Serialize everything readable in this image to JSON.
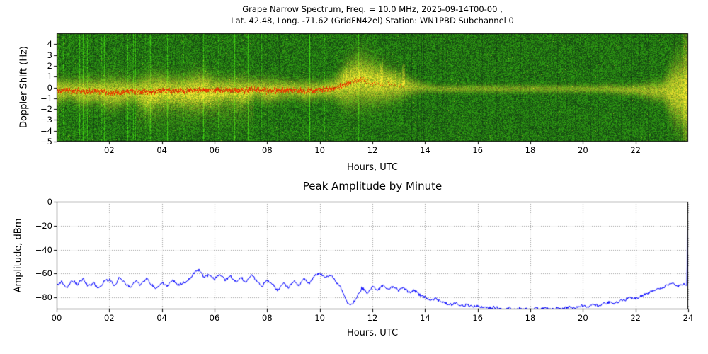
{
  "figure": {
    "background": "#ffffff",
    "top_chart": {
      "title_line1": "Grape Narrow Spectrum, Freq. = 10.0 MHz, 2025-09-14T00-00 ,",
      "title_line2": "Lat.  42.48, Long. -71.62 (GridFN42el) Station: WN1PBD Subchannel 0",
      "ylabel": "Doppler Shift (Hz)",
      "xlabel": "Hours, UTC"
    },
    "bottom_chart": {
      "title": "Peak Amplitude by Minute",
      "ylabel": "Amplitude, dBm",
      "xlabel": "Hours, UTC"
    }
  },
  "chart_data": [
    {
      "type": "heatmap",
      "title": "Grape Narrow Spectrum, Freq. = 10.0 MHz, 2025-09-14T00-00 , Lat. 42.48, Long. -71.62 (GridFN42el) Station: WN1PBD Subchannel 0",
      "xlabel": "Hours, UTC",
      "ylabel": "Doppler Shift (Hz)",
      "xlim": [
        0,
        24
      ],
      "ylim": [
        -5,
        5
      ],
      "xticks": [
        2,
        4,
        6,
        8,
        10,
        12,
        14,
        16,
        18,
        20,
        22
      ],
      "xtick_labels": [
        "02",
        "04",
        "06",
        "08",
        "10",
        "12",
        "14",
        "16",
        "18",
        "20",
        "22"
      ],
      "yticks": [
        4,
        3,
        2,
        1,
        0,
        -1,
        -2,
        -3,
        -4,
        -5
      ],
      "ytick_labels": [
        "4",
        "3",
        "2",
        "1",
        "0",
        "−1",
        "−2",
        "−3",
        "−4",
        "−5"
      ],
      "description": "Doppler spectrogram: green noise background with a yellow carrier trace (red core before ~13 UTC) near 0 Hz; broadened noisy trace 0-11 UTC with downward fuzz, upward excursions to ~+2 Hz near 11-13 UTC, thin quiet trace 14-22 UTC, broadening again near 23-24 UTC.",
      "trace": {
        "hours": [
          0,
          0.5,
          1,
          1.5,
          2,
          2.5,
          3,
          3.5,
          4,
          4.5,
          5,
          5.5,
          6,
          6.5,
          7,
          7.5,
          8,
          8.5,
          9,
          9.5,
          10,
          10.5,
          11,
          11.5,
          12,
          12.5,
          13,
          13.5,
          14,
          14.5,
          15,
          15.5,
          16,
          16.5,
          17,
          17.5,
          18,
          18.5,
          19,
          19.5,
          20,
          20.5,
          21,
          21.5,
          22,
          22.5,
          23,
          23.5,
          24
        ],
        "center_hz": [
          -0.3,
          -0.2,
          -0.4,
          -0.3,
          -0.5,
          -0.4,
          -0.3,
          -0.4,
          -0.2,
          -0.3,
          -0.3,
          -0.2,
          -0.3,
          -0.2,
          -0.3,
          -0.1,
          -0.3,
          -0.2,
          -0.2,
          -0.3,
          -0.2,
          -0.1,
          0.3,
          0.8,
          0.5,
          0.3,
          0.2,
          0.1,
          0.0,
          -0.1,
          -0.1,
          -0.1,
          -0.1,
          -0.1,
          -0.1,
          -0.1,
          -0.1,
          -0.1,
          -0.1,
          -0.1,
          -0.1,
          -0.1,
          -0.1,
          -0.2,
          -0.2,
          -0.3,
          -0.3,
          -0.4,
          -0.5
        ],
        "spread_hz": [
          0.7,
          0.6,
          0.8,
          0.7,
          0.9,
          0.8,
          0.7,
          1.0,
          0.9,
          0.8,
          0.9,
          1.0,
          0.8,
          0.7,
          0.8,
          0.6,
          0.7,
          0.6,
          0.5,
          0.6,
          0.5,
          0.6,
          1.2,
          1.4,
          1.2,
          1.0,
          0.8,
          0.5,
          0.3,
          0.25,
          0.25,
          0.25,
          0.25,
          0.25,
          0.25,
          0.25,
          0.25,
          0.25,
          0.25,
          0.25,
          0.25,
          0.25,
          0.3,
          0.3,
          0.35,
          0.5,
          0.6,
          1.8,
          2.2
        ],
        "intensity": [
          0.9,
          0.85,
          0.9,
          0.9,
          0.95,
          0.9,
          0.85,
          0.95,
          0.9,
          0.9,
          0.95,
          1.0,
          0.9,
          0.85,
          0.9,
          0.85,
          0.9,
          0.85,
          0.8,
          0.85,
          0.8,
          0.9,
          1.0,
          1.0,
          1.0,
          0.95,
          0.85,
          0.7,
          0.55,
          0.5,
          0.5,
          0.5,
          0.5,
          0.5,
          0.5,
          0.5,
          0.5,
          0.5,
          0.5,
          0.5,
          0.5,
          0.55,
          0.6,
          0.6,
          0.65,
          0.7,
          0.75,
          0.9,
          0.95
        ],
        "red_core": [
          1,
          1,
          1,
          1,
          1,
          1,
          1,
          1,
          1,
          1,
          1,
          1,
          1,
          1,
          1,
          1,
          1,
          1,
          1,
          1,
          1,
          1,
          0.8,
          0.5,
          0.3,
          0.2,
          0.1,
          0,
          0,
          0,
          0,
          0,
          0,
          0,
          0,
          0,
          0,
          0,
          0,
          0,
          0,
          0,
          0,
          0,
          0,
          0,
          0,
          0,
          0
        ]
      },
      "colors": {
        "background_green": "#1f7a1f",
        "trace_yellow": "#ffe800",
        "trace_core_red": "#e03000"
      }
    },
    {
      "type": "line",
      "title": "Peak Amplitude by Minute",
      "xlabel": "Hours, UTC",
      "ylabel": "Amplitude, dBm",
      "xlim": [
        0,
        24
      ],
      "ylim": [
        -90,
        0
      ],
      "xticks": [
        0,
        2,
        4,
        6,
        8,
        10,
        12,
        14,
        16,
        18,
        20,
        22,
        24
      ],
      "xtick_labels": [
        "00",
        "02",
        "04",
        "06",
        "08",
        "10",
        "12",
        "14",
        "16",
        "18",
        "20",
        "22",
        "24"
      ],
      "yticks": [
        0,
        -20,
        -40,
        -60,
        -80
      ],
      "ytick_labels": [
        "0",
        "−20",
        "−40",
        "−60",
        "−80"
      ],
      "grid": true,
      "line_color": "#0000ff",
      "x": [
        0,
        0.2,
        0.4,
        0.6,
        0.8,
        1,
        1.2,
        1.4,
        1.6,
        1.8,
        2,
        2.2,
        2.4,
        2.6,
        2.8,
        3,
        3.2,
        3.4,
        3.6,
        3.8,
        4,
        4.2,
        4.4,
        4.6,
        4.8,
        5,
        5.2,
        5.4,
        5.6,
        5.8,
        6,
        6.2,
        6.4,
        6.6,
        6.8,
        7,
        7.2,
        7.4,
        7.6,
        7.8,
        8,
        8.2,
        8.4,
        8.6,
        8.8,
        9,
        9.2,
        9.4,
        9.6,
        9.8,
        10,
        10.2,
        10.4,
        10.6,
        10.8,
        11,
        11.2,
        11.4,
        11.6,
        11.8,
        12,
        12.2,
        12.4,
        12.6,
        12.8,
        13,
        13.2,
        13.4,
        13.6,
        13.8,
        14,
        14.2,
        14.4,
        14.6,
        14.8,
        15,
        15.2,
        15.4,
        15.6,
        15.8,
        16,
        16.2,
        16.4,
        16.6,
        16.8,
        17,
        17.2,
        17.4,
        17.6,
        17.8,
        18,
        18.2,
        18.4,
        18.6,
        18.8,
        19,
        19.2,
        19.4,
        19.6,
        19.8,
        20,
        20.2,
        20.4,
        20.6,
        20.8,
        21,
        21.2,
        21.4,
        21.6,
        21.8,
        22,
        22.2,
        22.4,
        22.6,
        22.8,
        23,
        23.2,
        23.4,
        23.6,
        23.8,
        23.95,
        24
      ],
      "y": [
        -70,
        -67,
        -72,
        -66,
        -69,
        -64,
        -71,
        -68,
        -73,
        -67,
        -65,
        -70,
        -63,
        -68,
        -72,
        -66,
        -70,
        -64,
        -69,
        -73,
        -67,
        -71,
        -65,
        -70,
        -68,
        -66,
        -60,
        -57,
        -63,
        -61,
        -65,
        -60,
        -66,
        -62,
        -67,
        -63,
        -68,
        -61,
        -66,
        -71,
        -65,
        -69,
        -74,
        -68,
        -72,
        -66,
        -70,
        -64,
        -68,
        -62,
        -60,
        -63,
        -61,
        -66,
        -72,
        -83,
        -87,
        -80,
        -72,
        -76,
        -71,
        -74,
        -70,
        -73,
        -71,
        -74,
        -72,
        -76,
        -74,
        -78,
        -80,
        -82,
        -81,
        -84,
        -85,
        -86,
        -85,
        -87,
        -86,
        -88,
        -87,
        -88,
        -89,
        -88,
        -89,
        -90,
        -89,
        -90,
        -89,
        -90,
        -90,
        -89,
        -90,
        -89,
        -90,
        -89,
        -90,
        -88,
        -89,
        -88,
        -87,
        -88,
        -86,
        -87,
        -85,
        -84,
        -85,
        -83,
        -82,
        -80,
        -81,
        -79,
        -77,
        -75,
        -73,
        -72,
        -70,
        -68,
        -71,
        -69,
        -70,
        0
      ]
    }
  ]
}
